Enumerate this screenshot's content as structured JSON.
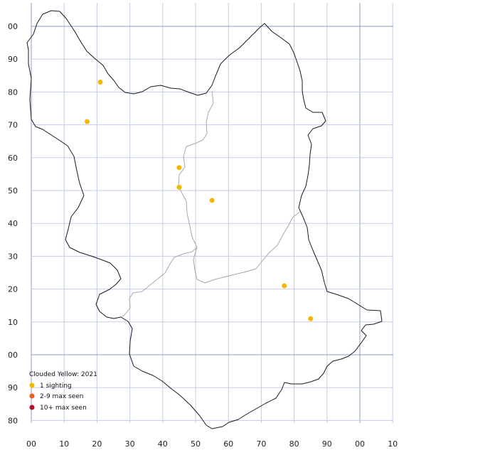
{
  "legend": {
    "title": "Clouded Yellow:  2021",
    "items": [
      {
        "label": "1 sighting",
        "color": "#f5b800"
      },
      {
        "label": "2-9 max seen",
        "color": "#f25a1f"
      },
      {
        "label": "10+ max seen",
        "color": "#b0102a"
      }
    ]
  },
  "axes": {
    "x_labels": [
      "00",
      "10",
      "20",
      "30",
      "40",
      "50",
      "60",
      "70",
      "80",
      "90",
      "00",
      "10"
    ],
    "y_labels": [
      "00",
      "90",
      "80",
      "70",
      "60",
      "50",
      "40",
      "30",
      "20",
      "10",
      "00",
      "90",
      "80"
    ],
    "x_major": [
      "00"
    ],
    "y_major": [
      "00"
    ]
  },
  "sightings": [
    {
      "e": 21,
      "n": 83
    },
    {
      "e": 17,
      "n": 71
    },
    {
      "e": 45,
      "n": 57
    },
    {
      "e": 45,
      "n": 51
    },
    {
      "e": 55,
      "n": 47
    },
    {
      "e": 77,
      "n": 21
    },
    {
      "e": 85,
      "n": 11
    }
  ]
}
